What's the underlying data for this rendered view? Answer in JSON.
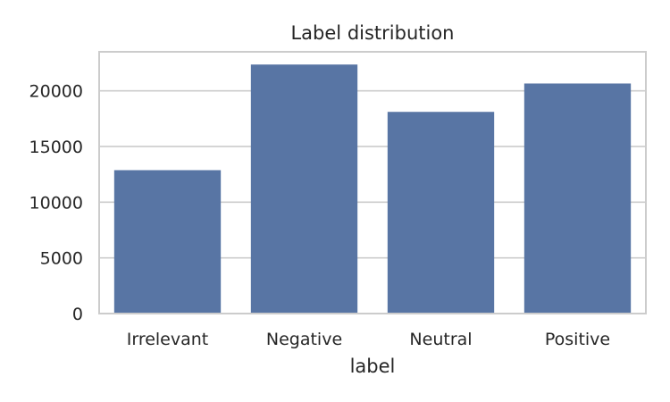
{
  "chart_data": {
    "type": "bar",
    "title": "Label distribution",
    "xlabel": "label",
    "ylabel": "",
    "categories": [
      "Irrelevant",
      "Negative",
      "Neutral",
      "Positive"
    ],
    "values": [
      12875,
      22358,
      18108,
      20655
    ],
    "ylim": [
      0,
      23500
    ],
    "yticks": [
      0,
      5000,
      10000,
      15000,
      20000
    ],
    "grid": true,
    "legend": "none",
    "colors": {
      "bar": "#5875a4",
      "grid": "#cccccc",
      "frame": "#cccccc",
      "text": "#262626",
      "background": "#ffffff"
    }
  }
}
